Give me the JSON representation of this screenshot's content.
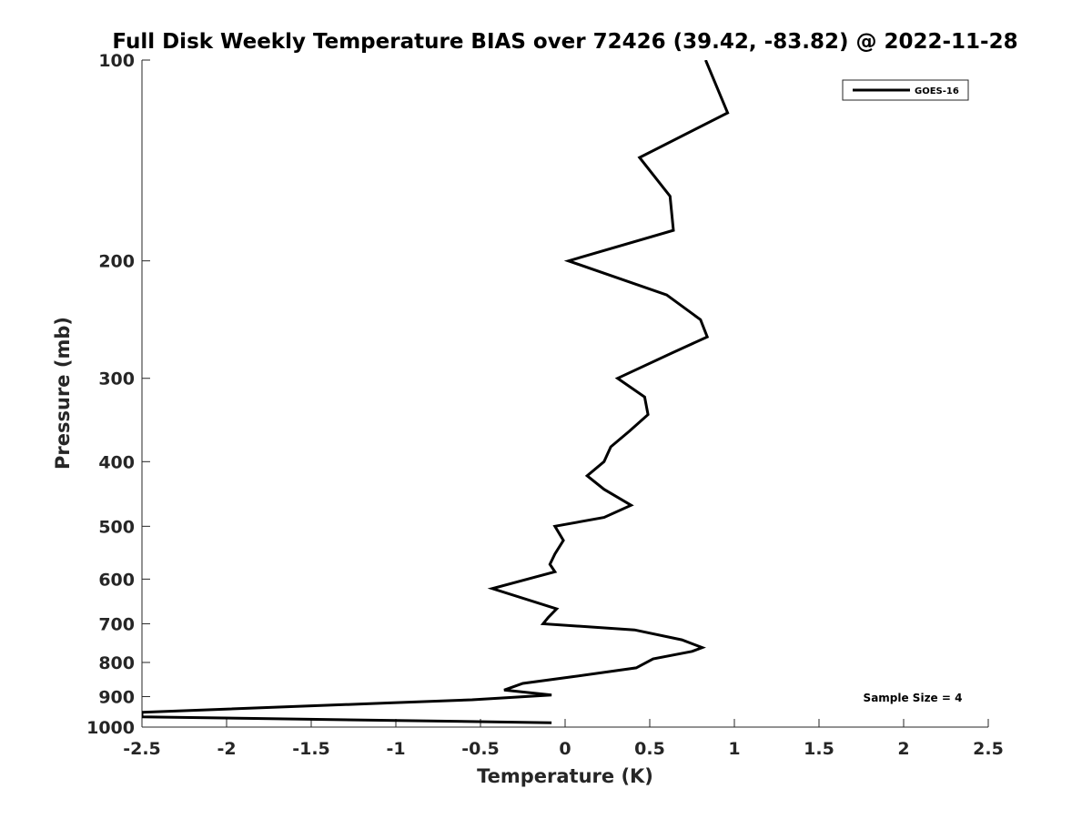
{
  "chart_data": {
    "type": "line",
    "title": "Full Disk Weekly Temperature BIAS over 72426 (39.42, -83.82) @ 2022-11-28",
    "xlabel": "Temperature (K)",
    "ylabel": "Pressure (mb)",
    "xlim": [
      -2.5,
      2.5
    ],
    "ylim": [
      100,
      1000
    ],
    "y_scale": "log",
    "y_reversed": true,
    "x_ticks": [
      "-2.5",
      "-2",
      "-1.5",
      "-1",
      "-0.5",
      "0",
      "0.5",
      "1",
      "1.5",
      "2",
      "2.5"
    ],
    "x_tick_values": [
      -2.5,
      -2,
      -1.5,
      -1,
      -0.5,
      0,
      0.5,
      1,
      1.5,
      2,
      2.5
    ],
    "y_ticks": [
      "100",
      "200",
      "300",
      "400",
      "500",
      "600",
      "700",
      "800",
      "900",
      "1000"
    ],
    "y_tick_values": [
      100,
      200,
      300,
      400,
      500,
      600,
      700,
      800,
      900,
      1000
    ],
    "grid": false,
    "legend_position": "top-right",
    "annotation": "Sample Size = 4",
    "series": [
      {
        "name": "GOES-16",
        "color": "#000000",
        "points": [
          {
            "x": 0.83,
            "p": 100
          },
          {
            "x": 0.96,
            "p": 120
          },
          {
            "x": 0.44,
            "p": 140
          },
          {
            "x": 0.62,
            "p": 160
          },
          {
            "x": 0.64,
            "p": 180
          },
          {
            "x": 0.02,
            "p": 200
          },
          {
            "x": 0.6,
            "p": 225
          },
          {
            "x": 0.8,
            "p": 245
          },
          {
            "x": 0.84,
            "p": 260
          },
          {
            "x": 0.63,
            "p": 275
          },
          {
            "x": 0.31,
            "p": 300
          },
          {
            "x": 0.47,
            "p": 320
          },
          {
            "x": 0.49,
            "p": 340
          },
          {
            "x": 0.38,
            "p": 360
          },
          {
            "x": 0.27,
            "p": 380
          },
          {
            "x": 0.23,
            "p": 400
          },
          {
            "x": 0.13,
            "p": 420
          },
          {
            "x": 0.23,
            "p": 440
          },
          {
            "x": 0.39,
            "p": 465
          },
          {
            "x": 0.23,
            "p": 485
          },
          {
            "x": -0.06,
            "p": 500
          },
          {
            "x": -0.01,
            "p": 525
          },
          {
            "x": -0.06,
            "p": 550
          },
          {
            "x": -0.09,
            "p": 570
          },
          {
            "x": -0.06,
            "p": 585
          },
          {
            "x": -0.43,
            "p": 620
          },
          {
            "x": -0.05,
            "p": 665
          },
          {
            "x": -0.1,
            "p": 685
          },
          {
            "x": -0.13,
            "p": 700
          },
          {
            "x": 0.41,
            "p": 715
          },
          {
            "x": 0.69,
            "p": 740
          },
          {
            "x": 0.81,
            "p": 760
          },
          {
            "x": 0.75,
            "p": 770
          },
          {
            "x": 0.52,
            "p": 790
          },
          {
            "x": 0.42,
            "p": 815
          },
          {
            "x": 0.05,
            "p": 840
          },
          {
            "x": -0.25,
            "p": 860
          },
          {
            "x": -0.36,
            "p": 880
          },
          {
            "x": -0.08,
            "p": 895
          },
          {
            "x": -0.55,
            "p": 910
          },
          {
            "x": -1.05,
            "p": 920
          },
          {
            "x": -2.5,
            "p": 950
          },
          {
            "x": -2.5,
            "p": 965
          },
          {
            "x": -0.08,
            "p": 985
          }
        ]
      }
    ]
  }
}
